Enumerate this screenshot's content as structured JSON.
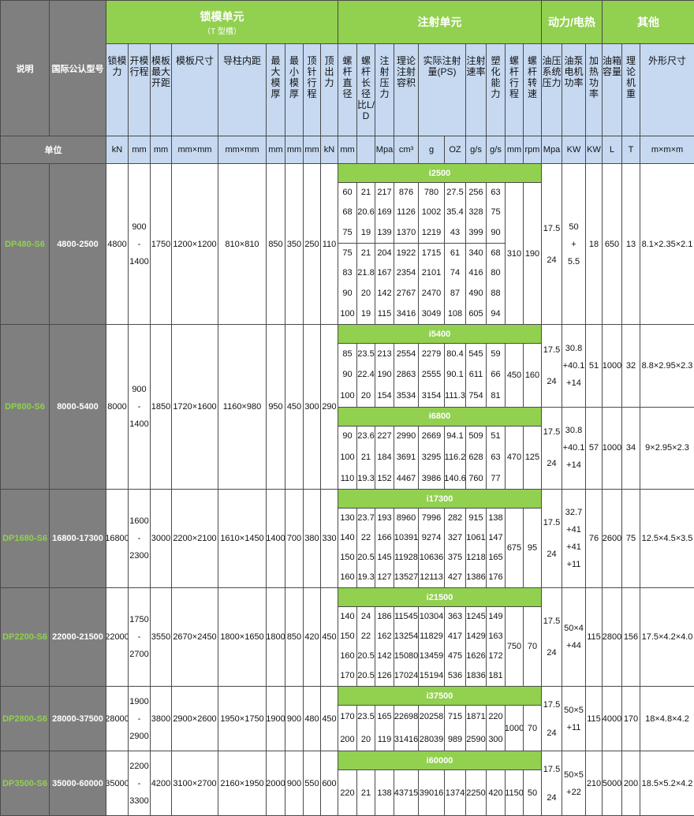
{
  "header": {
    "description": "说明",
    "model": "国际公认型号",
    "groups": [
      {
        "title": "锁模单元",
        "note": "（T 型槽）"
      },
      {
        "title": "注射单元"
      },
      {
        "title": "动力/电热"
      },
      {
        "title": "其他"
      }
    ],
    "columns": [
      "锁模力",
      "开模行程",
      "模板最大开距",
      "模板尺寸",
      "导柱内距",
      "最大模厚",
      "最小模厚",
      "顶针行程",
      "顶出力",
      "螺杆直径",
      "螺杆长径比L/D",
      "注射压力",
      "理论注射容积",
      "实际注射量(PS)",
      "注射速率",
      "塑化能力",
      "螺杆行程",
      "螺杆转速",
      "油压系统压力",
      "油泵电机功率",
      "加热功率",
      "油箱容量",
      "理论机重",
      "外形尺寸"
    ],
    "unit_label": "单位",
    "units": [
      "kN",
      "mm",
      "mm",
      "mm×mm",
      "mm×mm",
      "mm",
      "mm",
      "mm",
      "kN",
      "mm",
      null,
      "Mpa",
      "cm³",
      "g",
      "OZ",
      "g/s",
      "g/s",
      "mm",
      "rpm",
      "Mpa",
      "KW",
      "KW",
      "L",
      "T",
      "m×m×m"
    ]
  },
  "models": [
    {
      "name": "DP480-S6",
      "code": "4800-2500",
      "clamp_force": 4800,
      "opening_stroke": [
        "900",
        "-",
        "1400"
      ],
      "max_daylight": 1750,
      "platen_size": "1200×1200",
      "tie_bar": "810×810",
      "max_mold": 850,
      "min_mold": 350,
      "ejector_stroke": 250,
      "ejector_force": 110,
      "screws": [
        {
          "name": "i2500",
          "groups": [
            [
              [
                60,
                21,
                217,
                876,
                780,
                27.5,
                256,
                63
              ],
              [
                68,
                20.6,
                169,
                1126,
                1002,
                35.4,
                328,
                75
              ],
              [
                75,
                19,
                139,
                1370,
                1219,
                43,
                399,
                90
              ]
            ],
            [
              [
                75,
                21,
                204,
                1922,
                1715,
                61,
                340,
                68
              ],
              [
                83,
                21.8,
                167,
                2354,
                2101,
                74,
                416,
                80
              ],
              [
                90,
                20,
                142,
                2767,
                2470,
                87,
                490,
                88
              ],
              [
                100,
                19,
                115,
                3416,
                3049,
                108,
                605,
                94
              ]
            ]
          ],
          "stroke": 310,
          "speed": 190,
          "pressure": [
            "17.5",
            "24"
          ],
          "pump_power": [
            "50",
            "+",
            "5.5"
          ],
          "heating": 18,
          "tank": 650,
          "weight": 13,
          "dimensions": "8.1×2.35×2.1"
        }
      ]
    },
    {
      "name": "DP800-S6",
      "code": "8000-5400",
      "clamp_force": 8000,
      "opening_stroke": [
        "900",
        "-",
        "1400"
      ],
      "max_daylight": 1850,
      "platen_size": "1720×1600",
      "tie_bar": "1160×980",
      "max_mold": 950,
      "min_mold": 450,
      "ejector_stroke": 300,
      "ejector_force": 290,
      "screws": [
        {
          "name": "i5400",
          "groups": [
            [
              [
                85,
                23.5,
                213,
                2554,
                2279,
                80.4,
                545,
                59
              ],
              [
                90,
                22.4,
                190,
                2863,
                2555,
                90.1,
                611,
                66
              ],
              [
                100,
                20,
                154,
                3534,
                3154,
                111.3,
                754,
                81
              ]
            ]
          ],
          "stroke": 450,
          "speed": 160,
          "pressure": [
            "17.5",
            "24"
          ],
          "pump_power": [
            "30.8",
            "+40.1",
            "+14"
          ],
          "heating": 51,
          "tank": 1000,
          "weight": 32,
          "dimensions": "8.8×2.95×2.3"
        },
        {
          "name": "i6800",
          "groups": [
            [
              [
                90,
                23.6,
                227,
                2990,
                2669,
                94.1,
                509,
                51
              ],
              [
                100,
                21,
                184,
                3691,
                3295,
                116.2,
                628,
                63
              ],
              [
                110,
                19.3,
                152,
                4467,
                3986,
                140.6,
                760,
                77
              ]
            ]
          ],
          "stroke": 470,
          "speed": 125,
          "pressure": [
            "17.5",
            "24"
          ],
          "pump_power": [
            "30.8",
            "+40.1",
            "+14"
          ],
          "heating": 57,
          "tank": 1000,
          "weight": 34,
          "dimensions": "9×2.95×2.3"
        }
      ]
    },
    {
      "name": "DP1680-S6",
      "code": "16800-17300",
      "clamp_force": 16800,
      "opening_stroke": [
        "1600",
        "-",
        "2300"
      ],
      "max_daylight": 3000,
      "platen_size": "2200×2100",
      "tie_bar": "1610×1450",
      "max_mold": 1400,
      "min_mold": 700,
      "ejector_stroke": 380,
      "ejector_force": 330,
      "screws": [
        {
          "name": "i17300",
          "groups": [
            [
              [
                130,
                23.7,
                193,
                8960,
                7996,
                282,
                915,
                138
              ],
              [
                140,
                22,
                166,
                10391,
                9274,
                327,
                1061,
                147
              ],
              [
                150,
                20.5,
                145,
                11928,
                10636,
                375,
                1218,
                165
              ],
              [
                160,
                19.3,
                127,
                13527,
                12113,
                427,
                1386,
                176
              ]
            ]
          ],
          "stroke": 675,
          "speed": 95,
          "pressure": [
            "17.5",
            "24"
          ],
          "pump_power": [
            "32.7",
            "+41",
            "+41",
            "+11"
          ],
          "heating": 76,
          "tank": 2600,
          "weight": 75,
          "dimensions": "12.5×4.5×3.5"
        }
      ]
    },
    {
      "name": "DP2200-S6",
      "code": "22000-21500",
      "clamp_force": 22000,
      "opening_stroke": [
        "1750",
        "-",
        "2700"
      ],
      "max_daylight": 3550,
      "platen_size": "2670×2450",
      "tie_bar": "1800×1650",
      "max_mold": 1800,
      "min_mold": 850,
      "ejector_stroke": 420,
      "ejector_force": 450,
      "screws": [
        {
          "name": "i21500",
          "groups": [
            [
              [
                140,
                24,
                186,
                11545,
                10304,
                363,
                1245,
                149
              ],
              [
                150,
                22,
                162,
                13254,
                11829,
                417,
                1429,
                163
              ],
              [
                160,
                20.5,
                142,
                15080,
                13459,
                475,
                1626,
                172
              ],
              [
                170,
                20.5,
                126,
                17024,
                15194,
                536,
                1836,
                181
              ]
            ]
          ],
          "stroke": 750,
          "speed": 70,
          "pressure": [
            "17.5",
            "24"
          ],
          "pump_power": [
            "50×4",
            "+44"
          ],
          "heating": 115,
          "tank": 2800,
          "weight": 156,
          "dimensions": "17.5×4.2×4.0"
        }
      ]
    },
    {
      "name": "DP2800-S6",
      "code": "28000-37500",
      "clamp_force": 28000,
      "opening_stroke": [
        "1900",
        "-",
        "2900"
      ],
      "max_daylight": 3800,
      "platen_size": "2900×2600",
      "tie_bar": "1950×1750",
      "max_mold": 1900,
      "min_mold": 900,
      "ejector_stroke": 480,
      "ejector_force": 450,
      "screws": [
        {
          "name": "i37500",
          "groups": [
            [
              [
                170,
                23.5,
                165,
                22698,
                20258,
                715,
                1871,
                220
              ],
              [
                200,
                20,
                119,
                31416,
                28039,
                989,
                2590,
                300
              ]
            ]
          ],
          "stroke": 1000,
          "speed": 70,
          "pressure": [
            "17.5",
            "24"
          ],
          "pump_power": [
            "50×5",
            "+11"
          ],
          "heating": 115,
          "tank": 4000,
          "weight": 170,
          "dimensions": "18×4.8×4.2"
        }
      ]
    },
    {
      "name": "DP3500-S6",
      "code": "35000-60000",
      "clamp_force": 35000,
      "opening_stroke": [
        "2200",
        "-",
        "3300"
      ],
      "max_daylight": 4200,
      "platen_size": "3100×2700",
      "tie_bar": "2160×1950",
      "max_mold": 2000,
      "min_mold": 900,
      "ejector_stroke": 550,
      "ejector_force": 600,
      "screws": [
        {
          "name": "i60000",
          "groups": [
            [
              [
                220,
                21,
                138,
                43715,
                39016,
                1374,
                2250,
                420
              ]
            ]
          ],
          "stroke": 1150,
          "speed": 50,
          "pressure": [
            "17.5",
            "24"
          ],
          "pump_power": [
            "50×5",
            "+22"
          ],
          "heating": 210,
          "tank": 5000,
          "weight": 200,
          "dimensions": "18.5×5.2×4.2"
        }
      ]
    }
  ]
}
